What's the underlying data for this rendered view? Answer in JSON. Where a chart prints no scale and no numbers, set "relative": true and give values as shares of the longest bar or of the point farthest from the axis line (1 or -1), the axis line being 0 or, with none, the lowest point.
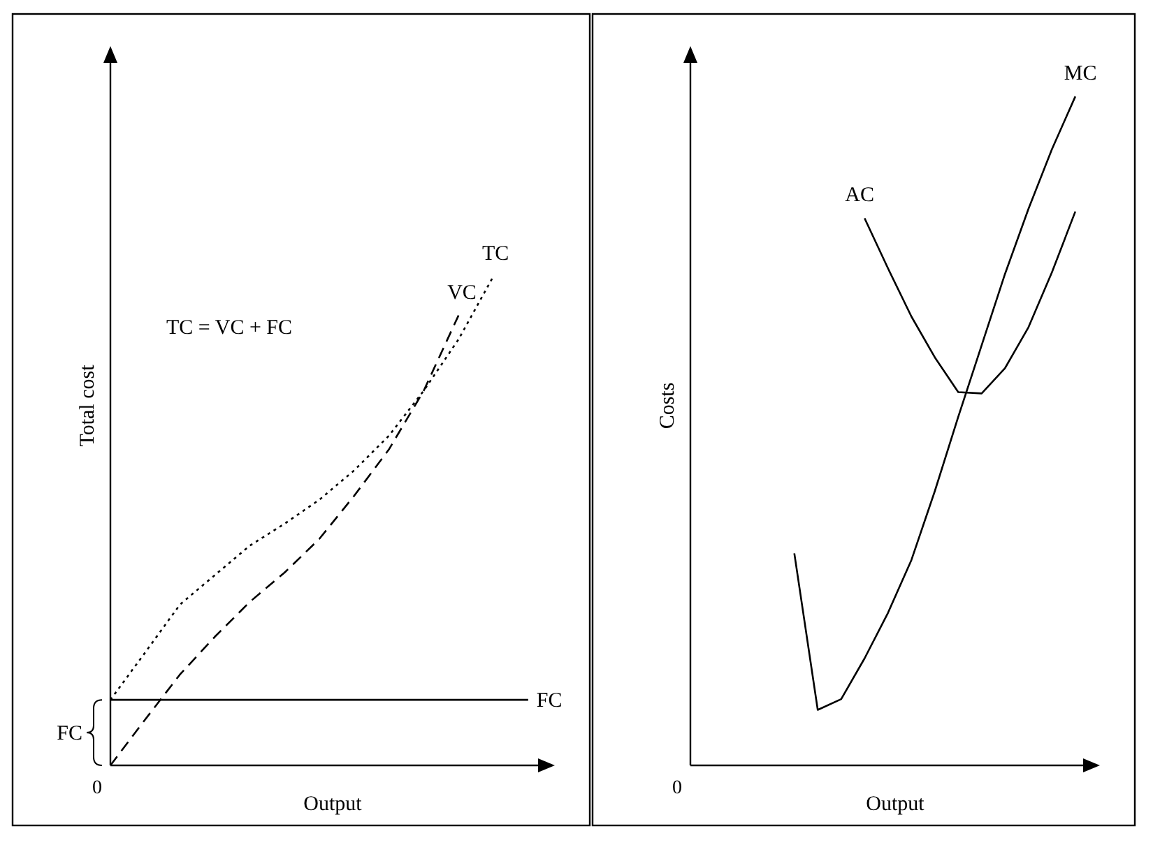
{
  "chart_data": [
    {
      "type": "line",
      "relative": true,
      "xlabel": "Output",
      "ylabel": "Total cost",
      "annotations": [
        "TC = VC + FC",
        "0",
        "FC"
      ],
      "categories": [
        null,
        null,
        null,
        null,
        null,
        null,
        null,
        null,
        null,
        null,
        null,
        null,
        null
      ],
      "series": [
        {
          "name": "TC",
          "color": "#000000",
          "line_style": "dotted",
          "values": [
            0.134,
            0.231,
            0.329,
            0.389,
            0.449,
            0.494,
            0.543,
            0.603,
            0.674,
            0.766,
            0.871,
            1,
            null
          ]
        },
        {
          "name": "VC",
          "color": "#000000",
          "line_style": "dashed",
          "values": [
            0,
            0.094,
            0.186,
            0.263,
            0.334,
            0.394,
            0.463,
            0.551,
            0.646,
            0.766,
            0.92,
            null,
            null
          ]
        },
        {
          "name": "FC",
          "color": "#000000",
          "line_style": "solid",
          "values": [
            0.134,
            0.134,
            0.134,
            0.134,
            0.134,
            0.134,
            0.134,
            0.134,
            0.134,
            0.134,
            0.134,
            0.134,
            0.134
          ]
        }
      ]
    },
    {
      "type": "line",
      "relative": true,
      "xlabel": "Output",
      "ylabel": "Costs",
      "annotations": [
        "0"
      ],
      "categories": [
        null,
        null,
        null,
        null,
        null,
        null,
        null,
        null,
        null,
        null,
        null,
        null,
        null
      ],
      "series": [
        {
          "name": "AC",
          "color": "#000000",
          "line_style": "solid",
          "values": [
            null,
            null,
            null,
            0.818,
            0.743,
            0.671,
            0.61,
            0.558,
            0.556,
            0.594,
            0.655,
            0.737,
            0.828
          ]
        },
        {
          "name": "MC",
          "color": "#000000",
          "line_style": "solid",
          "values": [
            0.317,
            0.083,
            0.099,
            0.16,
            0.228,
            0.307,
            0.41,
            0.521,
            0.628,
            0.735,
            0.832,
            0.921,
            1
          ]
        }
      ]
    }
  ]
}
